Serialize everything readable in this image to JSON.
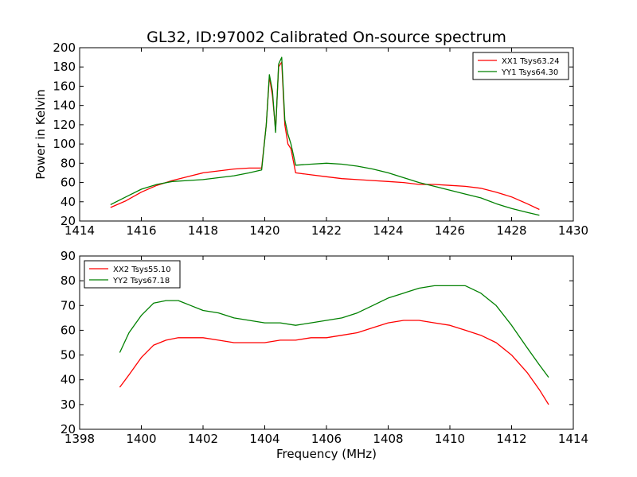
{
  "title": "GL32, ID:97002 Calibrated On-source spectrum",
  "colors": {
    "red": "#ff0000",
    "green": "#008000",
    "axes": "#000000"
  },
  "chart_data": [
    {
      "type": "line",
      "ylabel": "Power in Kelvin",
      "xlabel": "",
      "xlim": [
        1414,
        1430
      ],
      "ylim": [
        20,
        200
      ],
      "xticks": [
        "1414",
        "1416",
        "1418",
        "1420",
        "1422",
        "1424",
        "1426",
        "1428",
        "1430"
      ],
      "yticks": [
        "20",
        "40",
        "60",
        "80",
        "100",
        "120",
        "140",
        "160",
        "180",
        "200"
      ],
      "legend_position": "top-right",
      "series": [
        {
          "name": "XX1 Tsys63.24",
          "color": "#ff0000",
          "x": [
            1415.0,
            1415.5,
            1416.0,
            1416.5,
            1417.0,
            1417.5,
            1418.0,
            1418.5,
            1419.0,
            1419.5,
            1419.9,
            1420.05,
            1420.15,
            1420.25,
            1420.35,
            1420.45,
            1420.55,
            1420.65,
            1420.75,
            1420.85,
            1421.0,
            1421.5,
            1422.0,
            1422.5,
            1423.0,
            1423.5,
            1424.0,
            1424.5,
            1425.0,
            1425.5,
            1426.0,
            1426.5,
            1427.0,
            1427.5,
            1428.0,
            1428.5,
            1428.9
          ],
          "values": [
            34,
            41,
            50,
            57,
            62,
            66,
            70,
            72,
            74,
            75,
            75,
            120,
            170,
            150,
            115,
            180,
            185,
            120,
            100,
            95,
            70,
            68,
            66,
            64,
            63,
            62,
            61,
            60,
            58,
            58,
            57,
            56,
            54,
            50,
            45,
            38,
            32
          ]
        },
        {
          "name": "YY1 Tsys64.30",
          "color": "#008000",
          "x": [
            1415.0,
            1415.5,
            1416.0,
            1416.5,
            1417.0,
            1417.5,
            1418.0,
            1418.5,
            1419.0,
            1419.5,
            1419.9,
            1420.05,
            1420.15,
            1420.25,
            1420.35,
            1420.45,
            1420.55,
            1420.65,
            1420.75,
            1420.85,
            1421.0,
            1421.5,
            1422.0,
            1422.5,
            1423.0,
            1423.5,
            1424.0,
            1424.5,
            1425.0,
            1425.5,
            1426.0,
            1426.5,
            1427.0,
            1427.5,
            1428.0,
            1428.5,
            1428.9
          ],
          "values": [
            37,
            45,
            53,
            58,
            61,
            62,
            63,
            65,
            67,
            70,
            73,
            120,
            172,
            155,
            112,
            183,
            190,
            125,
            110,
            100,
            78,
            79,
            80,
            79,
            77,
            74,
            70,
            65,
            60,
            56,
            52,
            48,
            44,
            38,
            33,
            29,
            26
          ]
        }
      ]
    },
    {
      "type": "line",
      "ylabel": "",
      "xlabel": "Frequency (MHz)",
      "xlim": [
        1398,
        1414
      ],
      "ylim": [
        20,
        90
      ],
      "xticks": [
        "1398",
        "1400",
        "1402",
        "1404",
        "1406",
        "1408",
        "1410",
        "1412",
        "1414"
      ],
      "yticks": [
        "20",
        "30",
        "40",
        "50",
        "60",
        "70",
        "80",
        "90"
      ],
      "legend_position": "top-left",
      "series": [
        {
          "name": "XX2 Tsys55.10",
          "color": "#ff0000",
          "x": [
            1399.3,
            1399.6,
            1400.0,
            1400.4,
            1400.8,
            1401.2,
            1401.6,
            1402.0,
            1402.5,
            1403.0,
            1403.5,
            1404.0,
            1404.5,
            1405.0,
            1405.5,
            1406.0,
            1406.5,
            1407.0,
            1407.5,
            1408.0,
            1408.5,
            1409.0,
            1409.5,
            1410.0,
            1410.5,
            1411.0,
            1411.5,
            1412.0,
            1412.5,
            1412.9,
            1413.2
          ],
          "values": [
            37,
            42,
            49,
            54,
            56,
            57,
            57,
            57,
            56,
            55,
            55,
            55,
            56,
            56,
            57,
            57,
            58,
            59,
            61,
            63,
            64,
            64,
            63,
            62,
            60,
            58,
            55,
            50,
            43,
            36,
            30
          ]
        },
        {
          "name": "YY2 Tsys67.18",
          "color": "#008000",
          "x": [
            1399.3,
            1399.6,
            1400.0,
            1400.4,
            1400.8,
            1401.2,
            1401.6,
            1402.0,
            1402.5,
            1403.0,
            1403.5,
            1404.0,
            1404.5,
            1405.0,
            1405.5,
            1406.0,
            1406.5,
            1407.0,
            1407.5,
            1408.0,
            1408.5,
            1409.0,
            1409.5,
            1410.0,
            1410.5,
            1411.0,
            1411.5,
            1412.0,
            1412.5,
            1412.9,
            1413.2
          ],
          "values": [
            51,
            59,
            66,
            71,
            72,
            72,
            70,
            68,
            67,
            65,
            64,
            63,
            63,
            62,
            63,
            64,
            65,
            67,
            70,
            73,
            75,
            77,
            78,
            78,
            78,
            75,
            70,
            62,
            53,
            46,
            41
          ]
        }
      ]
    }
  ]
}
